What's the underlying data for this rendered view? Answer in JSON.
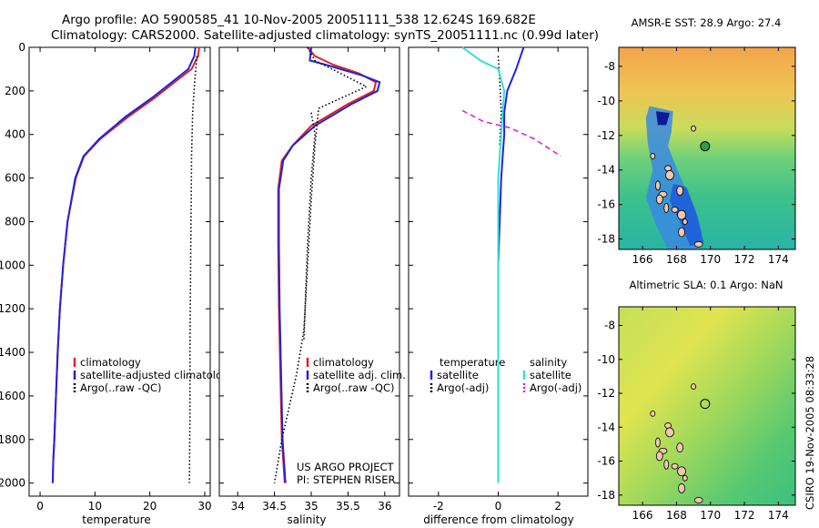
{
  "header": {
    "line1": "Argo profile: AO 5900585_41 10-Nov-2005 20051111_538 12.624S 169.682E",
    "line2": "Climatology: CARS2000. Satellite-adjusted climatology: synTS_20051111.nc (0.99d later)"
  },
  "colors": {
    "climatology": "#dd2222",
    "satellite": "#2222dd",
    "argo": "#000000",
    "salinity_satellite": "#33dddd",
    "salinity_argo": "#dd22dd"
  },
  "chart_data": [
    {
      "type": "line",
      "xlabel": "temperature",
      "ylabel": "",
      "xlim": [
        -2,
        31
      ],
      "ylim": [
        2060,
        0
      ],
      "xticks": [
        0,
        10,
        20,
        30
      ],
      "yticks": [
        0,
        200,
        400,
        600,
        800,
        1000,
        1200,
        1400,
        1600,
        1800,
        2000
      ],
      "legend": [
        "climatology",
        "satellite-adjusted climatology",
        "Argo(..raw -QC)"
      ],
      "legend_loc": "lower-left",
      "series": [
        {
          "name": "climatology",
          "color": "#dd2222",
          "style": "solid",
          "x": [
            29.0,
            28.8,
            27.6,
            25.0,
            21.0,
            16.0,
            11.0,
            8.0,
            6.5,
            5.0,
            4.2,
            3.6,
            3.2,
            2.9,
            2.6,
            2.4,
            2.3
          ],
          "y": [
            0,
            40,
            100,
            150,
            230,
            320,
            420,
            500,
            600,
            800,
            1000,
            1200,
            1400,
            1600,
            1800,
            1900,
            2000
          ]
        },
        {
          "name": "satellite-adjusted climatology",
          "color": "#2222dd",
          "style": "solid",
          "x": [
            28.3,
            28.1,
            27.0,
            24.5,
            20.5,
            15.5,
            10.8,
            7.9,
            6.4,
            5.0,
            4.2,
            3.6,
            3.2,
            2.9,
            2.6,
            2.4,
            2.3
          ],
          "y": [
            0,
            40,
            100,
            150,
            230,
            320,
            420,
            500,
            600,
            800,
            1000,
            1200,
            1400,
            1600,
            1800,
            1900,
            2000
          ]
        },
        {
          "name": "Argo(..raw -QC)",
          "color": "#000000",
          "style": "dotted",
          "x": [
            28.6,
            28.2,
            27.8,
            27.6,
            27.5,
            27.4,
            27.3,
            27.3,
            27.2
          ],
          "y": [
            40,
            150,
            300,
            500,
            800,
            1100,
            1400,
            1700,
            2000
          ]
        }
      ]
    },
    {
      "type": "line",
      "xlabel": "salinity",
      "ylabel": "",
      "xlim": [
        33.75,
        36.2
      ],
      "ylim": [
        2060,
        0
      ],
      "xticks": [
        34,
        34.5,
        35,
        35.5,
        36
      ],
      "legend": [
        "climatology",
        "satellite adj. clim.",
        "Argo(..raw -QC)"
      ],
      "legend_loc": "lower-right",
      "annotation": [
        "US ARGO PROJECT",
        "PI: STEPHEN RISER"
      ],
      "series": [
        {
          "name": "climatology",
          "color": "#dd2222",
          "style": "solid",
          "x": [
            34.95,
            35.05,
            35.3,
            35.65,
            35.88,
            35.85,
            35.5,
            35.0,
            34.75,
            34.6,
            34.55,
            34.55,
            34.56,
            34.58,
            34.6,
            34.62,
            34.64
          ],
          "y": [
            0,
            40,
            80,
            120,
            160,
            200,
            260,
            360,
            450,
            520,
            650,
            900,
            1200,
            1500,
            1800,
            1900,
            2000
          ]
        },
        {
          "name": "satellite adj. clim.",
          "color": "#2222dd",
          "style": "solid",
          "x": [
            35.0,
            34.98,
            35.3,
            35.7,
            35.93,
            35.9,
            35.55,
            35.05,
            34.75,
            34.62,
            34.56,
            34.56,
            34.57,
            34.59,
            34.61,
            34.63,
            34.65
          ],
          "y": [
            0,
            60,
            90,
            130,
            160,
            200,
            260,
            360,
            450,
            520,
            650,
            900,
            1200,
            1500,
            1800,
            1900,
            2000
          ]
        },
        {
          "name": "Argo(..raw -QC)",
          "color": "#000000",
          "style": "dotted",
          "x": [
            34.95,
            35.05,
            35.4,
            35.75,
            35.1,
            35.05,
            35.0,
            34.95,
            34.9,
            34.8,
            34.6,
            34.5
          ],
          "y": [
            0,
            60,
            120,
            180,
            280,
            450,
            700,
            1000,
            1300,
            1500,
            1800,
            2000
          ]
        },
        {
          "name": "",
          "color": "#000000",
          "style": "dotted",
          "x": [
            35.0,
            35.05,
            35.0,
            34.95,
            34.9
          ],
          "y": [
            300,
            400,
            600,
            900,
            1350
          ]
        }
      ]
    },
    {
      "type": "line",
      "xlabel": "difference from climatology",
      "ylabel": "",
      "xlim": [
        -3,
        3
      ],
      "ylim": [
        2060,
        0
      ],
      "xticks": [
        -2,
        0,
        2
      ],
      "legend_headers": [
        "temperature",
        "salinity"
      ],
      "legend": [
        "satellite",
        "Argo(-adj)",
        "satellite",
        "Argo(-adj)"
      ],
      "legend_loc": "lower",
      "series": [
        {
          "name": "satellite",
          "color": "#2222dd",
          "style": "solid",
          "group": "temperature",
          "x": [
            0.85,
            0.75,
            0.6,
            0.3,
            0.2,
            0.2,
            0.15,
            0.1,
            0.05,
            0.0,
            0.0,
            0.0
          ],
          "y": [
            0,
            40,
            100,
            200,
            300,
            400,
            500,
            600,
            800,
            1000,
            1200,
            1300
          ]
        },
        {
          "name": "Argo(-adj)",
          "color": "#000000",
          "style": "dotted",
          "group": "temperature",
          "x": [
            0.0,
            0.05,
            0.1,
            0.05
          ],
          "y": [
            40,
            150,
            300,
            450
          ]
        },
        {
          "name": "satellite",
          "color": "#33dddd",
          "style": "solid",
          "group": "salinity",
          "x": [
            -1.2,
            -0.6,
            0.0,
            0.2,
            0.15,
            0.1,
            0.05,
            0.0,
            0.0,
            0.0,
            0.0,
            0.0
          ],
          "y": [
            0,
            60,
            100,
            200,
            300,
            400,
            500,
            600,
            800,
            1200,
            1600,
            2000
          ]
        },
        {
          "name": "Argo(-adj)",
          "color": "#dd22dd",
          "style": "dashed",
          "group": "salinity",
          "x": [
            -1.2,
            -0.5,
            0.4,
            1.2,
            2.1
          ],
          "y": [
            290,
            340,
            370,
            420,
            500
          ]
        }
      ]
    },
    {
      "type": "heatmap",
      "title": "AMSR-E SST: 28.9 Argo: 27.4",
      "xlim": [
        164.6,
        175
      ],
      "ylim": [
        -18.6,
        -6.9
      ],
      "xticks": [
        166,
        168,
        170,
        172,
        174
      ],
      "yticks": [
        -8,
        -10,
        -12,
        -14,
        -16,
        -18
      ],
      "marker": {
        "lon": 169.682,
        "lat": -12.624
      }
    },
    {
      "type": "heatmap",
      "title": "Altimetric SLA: 0.1 Argo: NaN",
      "xlim": [
        164.6,
        175
      ],
      "ylim": [
        -18.6,
        -6.9
      ],
      "xticks": [
        166,
        168,
        170,
        172,
        174
      ],
      "yticks": [
        -8,
        -10,
        -12,
        -14,
        -16,
        -18
      ],
      "marker": {
        "lon": 169.682,
        "lat": -12.624
      }
    }
  ],
  "footer": {
    "stamp": "CSIRO 19-Nov-2005 08:33:28"
  }
}
